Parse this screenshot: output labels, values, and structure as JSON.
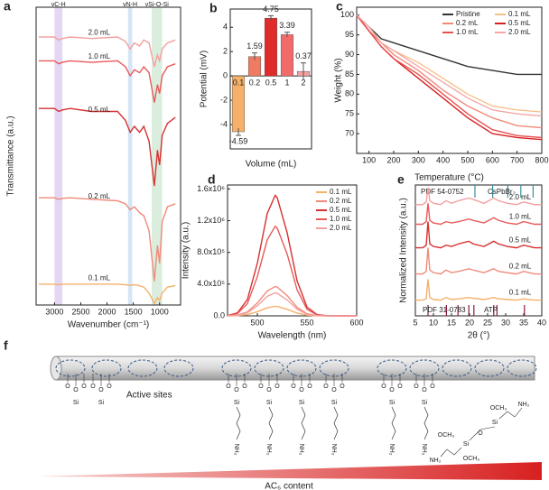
{
  "chart_data": [
    {
      "panel": "a",
      "type": "line",
      "x_label": "Wavenumber (cm⁻¹)",
      "y_label": "Transmittance (a.u.)",
      "xlim": [
        3350,
        600
      ],
      "xticks": [
        3000,
        2500,
        2000,
        1500,
        1000
      ],
      "ylim": [
        0,
        100
      ],
      "x": [
        3300,
        3000,
        2920,
        2850,
        2700,
        2300,
        1800,
        1650,
        1560,
        1480,
        1380,
        1300,
        1200,
        1100,
        1040,
        1000,
        950,
        850,
        700
      ],
      "bands": [
        {
          "label": "νC-H",
          "from": 2850,
          "to": 3000,
          "color": "#dccdf0"
        },
        {
          "label": "νN-H",
          "from": 1520,
          "to": 1600,
          "color": "#c9def3"
        },
        {
          "label": "νSi-O-Si",
          "from": 950,
          "to": 1150,
          "color": "#d2ead6"
        }
      ],
      "series": [
        {
          "name": "2.0 mL",
          "color": "#f4a0a0",
          "values": [
            90,
            90,
            89,
            89.5,
            90,
            89.5,
            90,
            88.5,
            86,
            88,
            87,
            89,
            88,
            80,
            84,
            82,
            86,
            88,
            89
          ]
        },
        {
          "name": "1.0 mL",
          "color": "#e85a5a",
          "values": [
            82,
            82,
            81,
            81.5,
            82,
            81.5,
            82,
            80,
            77,
            79,
            78,
            80,
            78,
            68,
            74,
            71,
            77,
            80,
            81
          ]
        },
        {
          "name": "0.5 mL",
          "color": "#d83030",
          "values": [
            66,
            66,
            65,
            65.5,
            66,
            65,
            65,
            62,
            58,
            60,
            58,
            60,
            55,
            40,
            52,
            47,
            57,
            61,
            63
          ]
        },
        {
          "name": "0.2 mL",
          "color": "#f08a7a",
          "values": [
            36,
            36,
            35.5,
            35.8,
            36,
            35.5,
            35,
            34,
            32,
            33,
            31,
            30,
            25,
            8,
            20,
            14,
            28,
            33,
            34
          ]
        },
        {
          "name": "0.1 mL",
          "color": "#f5b06a",
          "values": [
            7,
            7,
            6.8,
            7,
            7,
            7,
            7,
            6.8,
            6.6,
            6.8,
            6.5,
            6,
            4,
            0.5,
            2.5,
            1.5,
            4,
            6,
            6.5
          ]
        }
      ]
    },
    {
      "panel": "b",
      "type": "bar",
      "x_label": "Volume (mL)",
      "y_label": "Potential (mV)",
      "categories": [
        "0.1",
        "0.2",
        "0.5",
        "1",
        "2"
      ],
      "values": [
        -4.59,
        1.59,
        4.75,
        3.39,
        0.37
      ],
      "errors": [
        0.3,
        0.3,
        0.2,
        0.2,
        0.7
      ],
      "colors": [
        "#f5b06a",
        "#f07b63",
        "#e02b2b",
        "#f26b6b",
        "#f4a0a0"
      ],
      "ylim": [
        -6,
        5.5
      ],
      "yticks": [
        -4,
        -2,
        0,
        2,
        4
      ]
    },
    {
      "panel": "c",
      "type": "line",
      "x_label": "Temperature (°C)",
      "y_label": "Weight (%)",
      "legend": "upper right",
      "xlim": [
        50,
        800
      ],
      "xticks": [
        100,
        200,
        300,
        400,
        500,
        600,
        700,
        800
      ],
      "ylim": [
        65,
        102
      ],
      "yticks": [
        70,
        75,
        80,
        85,
        90,
        95,
        100
      ],
      "x": [
        50,
        100,
        150,
        200,
        300,
        400,
        500,
        600,
        700,
        800
      ],
      "series": [
        {
          "name": "Pristine",
          "color": "#333333",
          "values": [
            100,
            97,
            94,
            93,
            91,
            89,
            87,
            86,
            85,
            85
          ]
        },
        {
          "name": "0.1 mL",
          "color": "#f7c08a",
          "values": [
            100,
            97,
            93,
            91,
            88,
            84,
            80,
            77,
            76,
            75.5
          ]
        },
        {
          "name": "0.2 mL",
          "color": "#f08a7a",
          "values": [
            100,
            96,
            93,
            90,
            86,
            81,
            77,
            74,
            72,
            71.5
          ]
        },
        {
          "name": "0.5 mL",
          "color": "#d82020",
          "values": [
            100,
            96,
            92,
            89,
            84,
            79,
            74,
            70,
            69,
            68.5
          ]
        },
        {
          "name": "1.0 mL",
          "color": "#e85050",
          "values": [
            100,
            96,
            92,
            89,
            85,
            80,
            75,
            71,
            69.5,
            69
          ]
        },
        {
          "name": "2.0 mL",
          "color": "#f4a6a6",
          "values": [
            100,
            97,
            93,
            91,
            87,
            83,
            79,
            76,
            75,
            74.5
          ]
        }
      ]
    },
    {
      "panel": "d",
      "type": "line",
      "x_label": "Wavelength (nm)",
      "y_label": "Intensity (a.u.)",
      "legend": "upper right",
      "xlim": [
        470,
        600
      ],
      "xticks": [
        500,
        550,
        600
      ],
      "ylim": [
        0,
        1650000
      ],
      "yticks": [
        {
          "value": 0,
          "label": "0.0"
        },
        {
          "value": 400000,
          "label": "4.0x10⁵"
        },
        {
          "value": 800000,
          "label": "8.0x10⁵"
        },
        {
          "value": 1200000,
          "label": "1.2x10⁶"
        },
        {
          "value": 1600000,
          "label": "1.6x10⁶"
        }
      ],
      "x": [
        470,
        480,
        490,
        500,
        510,
        518,
        520,
        530,
        540,
        550,
        560,
        570,
        580,
        600
      ],
      "series": [
        {
          "name": "0.1 mL",
          "color": "#f5b06a",
          "values": [
            0,
            3000,
            16000,
            52000,
            102000,
            120000,
            118000,
            83000,
            35000,
            9000,
            1000,
            0,
            0,
            0
          ]
        },
        {
          "name": "0.2 mL",
          "color": "#f08a7a",
          "values": [
            1000,
            9000,
            50000,
            162000,
            314000,
            370000,
            363000,
            255000,
            107000,
            27000,
            4000,
            0,
            0,
            0
          ]
        },
        {
          "name": "0.5 mL",
          "color": "#d83030",
          "values": [
            4000,
            38000,
            205000,
            664000,
            1292000,
            1520000,
            1490000,
            1049000,
            441000,
            111000,
            17000,
            2000,
            0,
            0
          ]
        },
        {
          "name": "1.0 mL",
          "color": "#e85a5a",
          "values": [
            3000,
            28000,
            153000,
            494000,
            960000,
            1130000,
            1107000,
            780000,
            328000,
            82000,
            12000,
            1000,
            0,
            0
          ]
        },
        {
          "name": "2.0 mL",
          "color": "#f4a0a0",
          "values": [
            1000,
            7000,
            39000,
            127000,
            246000,
            290000,
            284000,
            200000,
            84000,
            21000,
            3000,
            0,
            0,
            0
          ]
        }
      ]
    },
    {
      "panel": "e",
      "type": "line",
      "x_label": "2θ (°)",
      "y_label": "Normalized Intensity (a.u.)",
      "xlim": [
        5,
        40
      ],
      "xticks": [
        5,
        10,
        15,
        20,
        25,
        30,
        35,
        40
      ],
      "ylim": [
        0,
        100
      ],
      "x": [
        5,
        7,
        8,
        8.5,
        9,
        10,
        12,
        13.5,
        15,
        17,
        19.8,
        21,
        24,
        26.7,
        28,
        30.5,
        33,
        35,
        38,
        40
      ],
      "references": [
        {
          "label": "PDF 54-0752",
          "phase": "CsPbBr₃",
          "color": "#3a8fa0",
          "side": "top",
          "positions": [
            21.5,
            26.4,
            30.6,
            34.2,
            37.6
          ]
        },
        {
          "label": "PDF 31-0783",
          "phase": "ATP",
          "color": "#8a1a3a",
          "side": "bottom",
          "positions": [
            8.5,
            13.6,
            16.8,
            19.8,
            21.2,
            26.7,
            27.6,
            35.2
          ]
        }
      ],
      "series": [
        {
          "name": "2.0 mL",
          "color": "#f4a0a0",
          "values": [
            85,
            85,
            87,
            98,
            88,
            86,
            85,
            88,
            86,
            88,
            90,
            89,
            86,
            90,
            88,
            86,
            85,
            87,
            85,
            85
          ]
        },
        {
          "name": "1.0 mL",
          "color": "#e85a5a",
          "values": [
            70,
            70,
            72,
            86,
            73,
            71,
            70,
            72,
            71,
            72,
            74,
            73,
            71,
            75,
            73,
            71,
            70,
            72,
            70,
            70
          ]
        },
        {
          "name": "0.5 mL",
          "color": "#d83030",
          "values": [
            52,
            52,
            54,
            72,
            55,
            53,
            52,
            54,
            53,
            55,
            57,
            55,
            53,
            57,
            55,
            53,
            52,
            54,
            52,
            52
          ]
        },
        {
          "name": "0.2 mL",
          "color": "#f08a7a",
          "values": [
            32,
            32,
            34,
            52,
            35,
            33,
            32,
            35,
            33,
            34,
            36,
            35,
            33,
            36,
            34,
            33,
            32,
            34,
            32,
            32
          ]
        },
        {
          "name": "0.1 mL",
          "color": "#f5b06a",
          "values": [
            12,
            12,
            13,
            28,
            14,
            12.5,
            12,
            14,
            12.5,
            13,
            14,
            13.5,
            12.5,
            14,
            13,
            12.5,
            12,
            13,
            12,
            12
          ]
        }
      ]
    }
  ],
  "diagram": {
    "panel": "f",
    "active_sites": "Active sites",
    "gradient_label": "AC₆ content",
    "atoms": {
      "o": "O",
      "si": "Si",
      "nh2": "NH₂",
      "och3": "OCH₃"
    }
  }
}
